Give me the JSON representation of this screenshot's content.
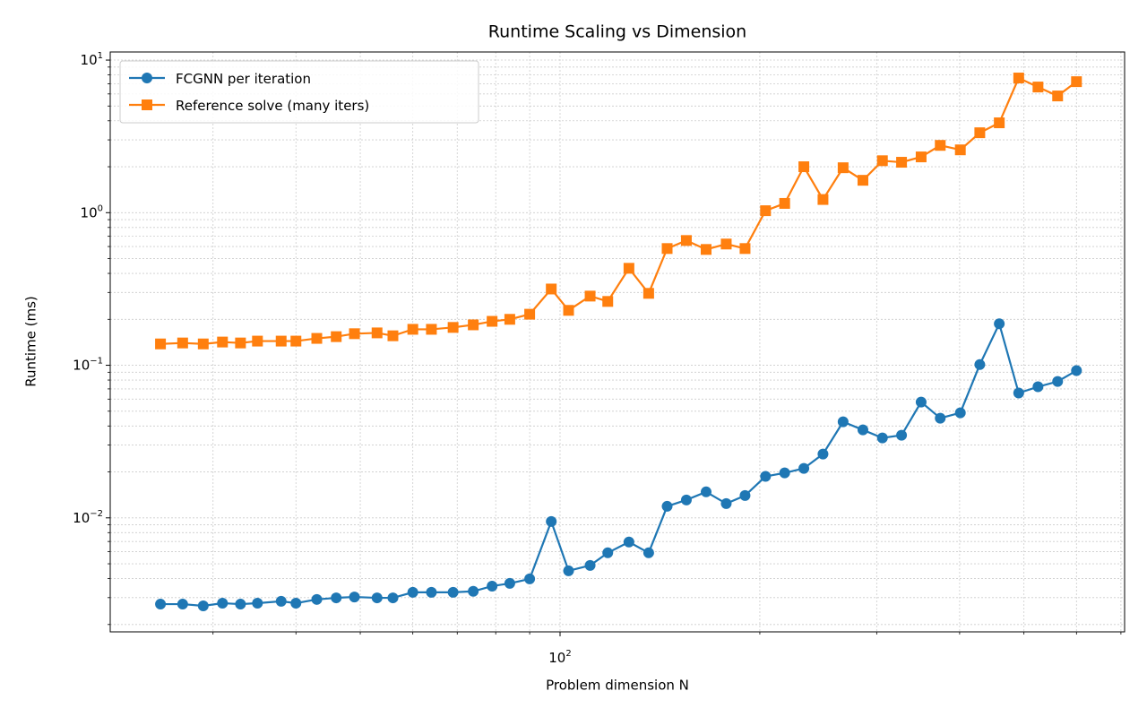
{
  "chart_data": {
    "type": "line",
    "title": "Runtime Scaling vs Dimension",
    "xlabel": "Problem dimension N",
    "ylabel": "Runtime (ms)",
    "x": [
      25,
      27,
      29,
      31,
      33,
      35,
      38,
      40,
      43,
      46,
      49,
      53,
      56,
      60,
      64,
      69,
      74,
      79,
      84,
      90,
      97,
      103,
      111,
      118,
      127,
      136,
      145,
      155,
      166,
      178,
      190,
      204,
      218,
      233,
      249,
      267,
      286,
      306,
      327,
      350,
      374,
      401,
      429,
      459,
      491,
      525,
      562,
      600
    ],
    "series": [
      {
        "name": "FCGNN per iteration",
        "color": "#1f77b4",
        "marker": "circle",
        "values": [
          0.00272,
          0.00272,
          0.00265,
          0.00276,
          0.00272,
          0.00276,
          0.00284,
          0.00276,
          0.00292,
          0.00299,
          0.00303,
          0.00299,
          0.00299,
          0.00325,
          0.00325,
          0.00325,
          0.0033,
          0.00357,
          0.00372,
          0.00398,
          0.00947,
          0.0045,
          0.00488,
          0.0059,
          0.00694,
          0.0059,
          0.0119,
          0.0131,
          0.0148,
          0.0124,
          0.014,
          0.0187,
          0.0197,
          0.0211,
          0.0262,
          0.0426,
          0.0377,
          0.0334,
          0.0348,
          0.0574,
          0.045,
          0.0488,
          0.101,
          0.187,
          0.0658,
          0.0723,
          0.0783,
          0.0922
        ]
      },
      {
        "name": "Reference solve (many iters)",
        "color": "#ff7f0e",
        "marker": "square",
        "values": [
          0.138,
          0.14,
          0.138,
          0.142,
          0.14,
          0.144,
          0.144,
          0.144,
          0.15,
          0.154,
          0.161,
          0.163,
          0.156,
          0.172,
          0.172,
          0.177,
          0.184,
          0.194,
          0.2,
          0.216,
          0.316,
          0.229,
          0.284,
          0.262,
          0.432,
          0.296,
          0.582,
          0.657,
          0.574,
          0.623,
          0.582,
          1.03,
          1.15,
          2.0,
          1.22,
          1.97,
          1.63,
          2.19,
          2.14,
          2.32,
          2.76,
          2.58,
          3.34,
          3.88,
          7.63,
          6.66,
          5.82,
          7.22
        ]
      }
    ],
    "xlog": true,
    "ylog": true,
    "xlim": [
      21,
      709
    ],
    "ylim": [
      0.00179,
      11.3
    ],
    "xticks": [
      {
        "value": 100,
        "label": "10^2"
      }
    ],
    "xminorticks": [
      30,
      40,
      50,
      60,
      70,
      80,
      90,
      200,
      300,
      400,
      500,
      600,
      700
    ],
    "yticks": [
      {
        "value": 0.01,
        "label": "10^−2"
      },
      {
        "value": 0.1,
        "label": "10^−1"
      },
      {
        "value": 1,
        "label": "10^0"
      },
      {
        "value": 10,
        "label": "10^1"
      }
    ],
    "yminorticks": [
      0.002,
      0.003,
      0.004,
      0.005,
      0.006,
      0.007,
      0.008,
      0.009,
      0.02,
      0.03,
      0.04,
      0.05,
      0.06,
      0.07,
      0.08,
      0.09,
      0.2,
      0.3,
      0.4,
      0.5,
      0.6,
      0.7,
      0.8,
      0.9,
      2,
      3,
      4,
      5,
      6,
      7,
      8,
      9
    ],
    "grid": true,
    "legend": "upper left"
  }
}
